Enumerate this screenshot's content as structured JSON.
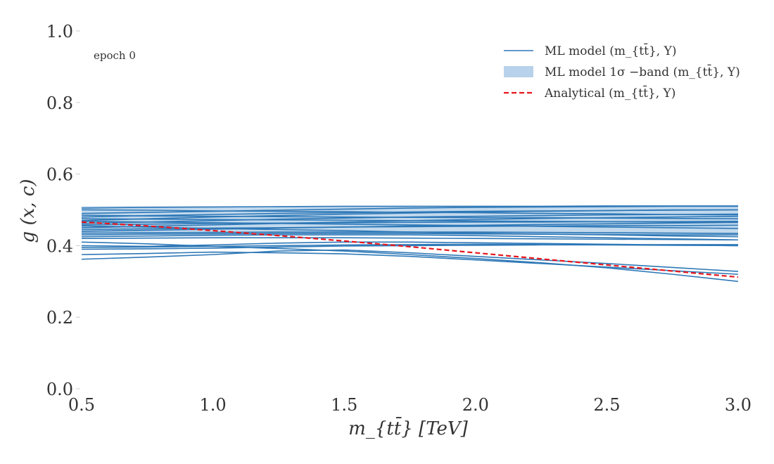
{
  "chart_data": {
    "type": "line",
    "title": "",
    "xlabel": "m_{tt̄} [TeV]",
    "ylabel": "g (x, c)",
    "xlim": [
      0.5,
      3.0
    ],
    "ylim": [
      0.0,
      1.0
    ],
    "x_ticks": [
      "0.5",
      "1.0",
      "1.5",
      "2.0",
      "2.5",
      "3.0"
    ],
    "y_ticks": [
      "0.0",
      "0.2",
      "0.4",
      "0.6",
      "0.8",
      "1.0"
    ],
    "grid": false,
    "legend_position": "top-right",
    "annotation": "epoch 0",
    "colors": {
      "ml": "#2e78b7",
      "band": "#b7d2ea",
      "analytical": "#e8161b"
    },
    "legend": [
      {
        "label": "ML model (m_{tt̄}, Y)",
        "kind": "line"
      },
      {
        "label": "ML model 1σ −band (m_{tt̄}, Y)",
        "kind": "band"
      },
      {
        "label": "Analytical (m_{tt̄}, Y)",
        "kind": "dashed"
      }
    ],
    "band": {
      "x": [
        0.5,
        3.0
      ],
      "lower": [
        0.43,
        0.43
      ],
      "upper": [
        0.51,
        0.51
      ]
    },
    "analytical": {
      "x": [
        0.5,
        0.75,
        1.0,
        1.25,
        1.5,
        1.75,
        2.0,
        2.25,
        2.5,
        2.75,
        3.0
      ],
      "y": [
        0.466,
        0.455,
        0.442,
        0.428,
        0.413,
        0.397,
        0.38,
        0.363,
        0.346,
        0.329,
        0.312
      ]
    },
    "ml_x": [
      0.5,
      0.75,
      1.0,
      1.25,
      1.5,
      1.75,
      2.0,
      2.25,
      2.5,
      2.75,
      3.0
    ],
    "ml_series": [
      [
        0.505,
        0.507,
        0.508,
        0.509,
        0.51,
        0.51,
        0.51,
        0.51,
        0.511,
        0.511,
        0.511
      ],
      [
        0.5,
        0.499,
        0.497,
        0.496,
        0.495,
        0.493,
        0.492,
        0.49,
        0.489,
        0.487,
        0.486
      ],
      [
        0.49,
        0.493,
        0.496,
        0.499,
        0.502,
        0.505,
        0.507,
        0.508,
        0.509,
        0.51,
        0.51
      ],
      [
        0.485,
        0.483,
        0.482,
        0.481,
        0.48,
        0.479,
        0.478,
        0.478,
        0.477,
        0.476,
        0.475
      ],
      [
        0.48,
        0.484,
        0.487,
        0.49,
        0.492,
        0.494,
        0.496,
        0.497,
        0.498,
        0.499,
        0.5
      ],
      [
        0.475,
        0.474,
        0.473,
        0.472,
        0.471,
        0.47,
        0.469,
        0.468,
        0.467,
        0.466,
        0.465
      ],
      [
        0.47,
        0.475,
        0.48,
        0.484,
        0.488,
        0.491,
        0.494,
        0.496,
        0.498,
        0.5,
        0.5
      ],
      [
        0.468,
        0.466,
        0.464,
        0.462,
        0.46,
        0.458,
        0.456,
        0.454,
        0.452,
        0.45,
        0.448
      ],
      [
        0.462,
        0.466,
        0.47,
        0.474,
        0.477,
        0.48,
        0.482,
        0.484,
        0.486,
        0.487,
        0.488
      ],
      [
        0.458,
        0.46,
        0.462,
        0.463,
        0.464,
        0.465,
        0.466,
        0.466,
        0.467,
        0.467,
        0.468
      ],
      [
        0.455,
        0.452,
        0.448,
        0.445,
        0.442,
        0.438,
        0.435,
        0.432,
        0.43,
        0.427,
        0.425
      ],
      [
        0.45,
        0.454,
        0.458,
        0.462,
        0.466,
        0.47,
        0.473,
        0.476,
        0.478,
        0.48,
        0.482
      ],
      [
        0.445,
        0.447,
        0.449,
        0.45,
        0.452,
        0.453,
        0.454,
        0.455,
        0.456,
        0.456,
        0.457
      ],
      [
        0.44,
        0.443,
        0.446,
        0.449,
        0.452,
        0.455,
        0.457,
        0.459,
        0.461,
        0.463,
        0.465
      ],
      [
        0.435,
        0.436,
        0.437,
        0.438,
        0.438,
        0.438,
        0.438,
        0.437,
        0.436,
        0.435,
        0.434
      ],
      [
        0.43,
        0.432,
        0.433,
        0.434,
        0.434,
        0.434,
        0.433,
        0.432,
        0.431,
        0.43,
        0.43
      ],
      [
        0.425,
        0.427,
        0.429,
        0.43,
        0.43,
        0.43,
        0.428,
        0.425,
        0.422,
        0.419,
        0.416
      ],
      [
        0.42,
        0.421,
        0.422,
        0.422,
        0.422,
        0.421,
        0.42,
        0.419,
        0.418,
        0.417,
        0.416
      ],
      [
        0.4,
        0.398,
        0.402,
        0.407,
        0.41,
        0.41,
        0.408,
        0.406,
        0.404,
        0.402,
        0.4
      ],
      [
        0.395,
        0.396,
        0.398,
        0.4,
        0.402,
        0.403,
        0.404,
        0.403,
        0.402,
        0.401,
        0.4
      ],
      [
        0.39,
        0.391,
        0.393,
        0.396,
        0.399,
        0.4,
        0.401,
        0.402,
        0.402,
        0.403,
        0.403
      ],
      [
        0.375,
        0.378,
        0.382,
        0.38,
        0.377,
        0.37,
        0.36,
        0.35,
        0.34,
        0.33,
        0.32
      ],
      [
        0.362,
        0.368,
        0.375,
        0.385,
        0.388,
        0.38,
        0.37,
        0.36,
        0.35,
        0.339,
        0.328
      ],
      [
        0.41,
        0.405,
        0.398,
        0.392,
        0.385,
        0.375,
        0.364,
        0.352,
        0.338,
        0.32,
        0.3
      ]
    ]
  }
}
